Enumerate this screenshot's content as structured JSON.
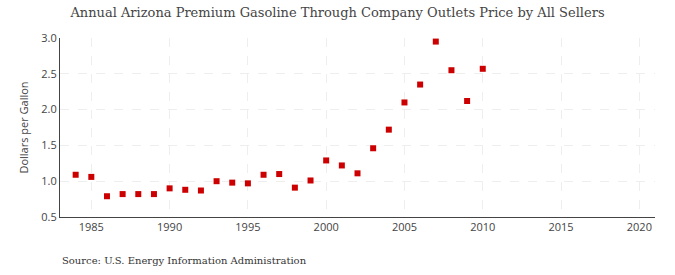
{
  "chart_data": {
    "type": "scatter",
    "title": "Annual Arizona Premium Gasoline Through Company Outlets Price by All Sellers",
    "ylabel": "Dollars per Gallon",
    "annotations": [
      "Source: U.S. Energy Information Administration"
    ],
    "x": [
      1984,
      1985,
      1986,
      1987,
      1988,
      1989,
      1990,
      1991,
      1992,
      1993,
      1994,
      1995,
      1996,
      1997,
      1998,
      1999,
      2000,
      2001,
      2002,
      2003,
      2004,
      2005,
      2006,
      2007,
      2008,
      2009,
      2010
    ],
    "values": [
      1.09,
      1.06,
      0.79,
      0.82,
      0.82,
      0.82,
      0.9,
      0.88,
      0.87,
      1.0,
      0.98,
      0.97,
      1.09,
      1.1,
      0.91,
      1.01,
      1.29,
      1.22,
      1.11,
      1.46,
      1.72,
      2.1,
      2.35,
      2.95,
      2.55,
      2.12,
      2.57
    ],
    "color": "#cc0000",
    "marker": "square",
    "xlim": [
      1983,
      2021
    ],
    "ylim": [
      0.5,
      3.0
    ],
    "xticks": [
      1985,
      1990,
      1995,
      2000,
      2005,
      2010,
      2015,
      2020
    ],
    "yticks": [
      0.5,
      {
        "value": 1.0,
        "label": "1.0"
      },
      1.5,
      {
        "value": 2.0,
        "label": "2.0"
      },
      2.5,
      {
        "value": 3.0,
        "label": "3.0"
      }
    ],
    "grid": true
  }
}
